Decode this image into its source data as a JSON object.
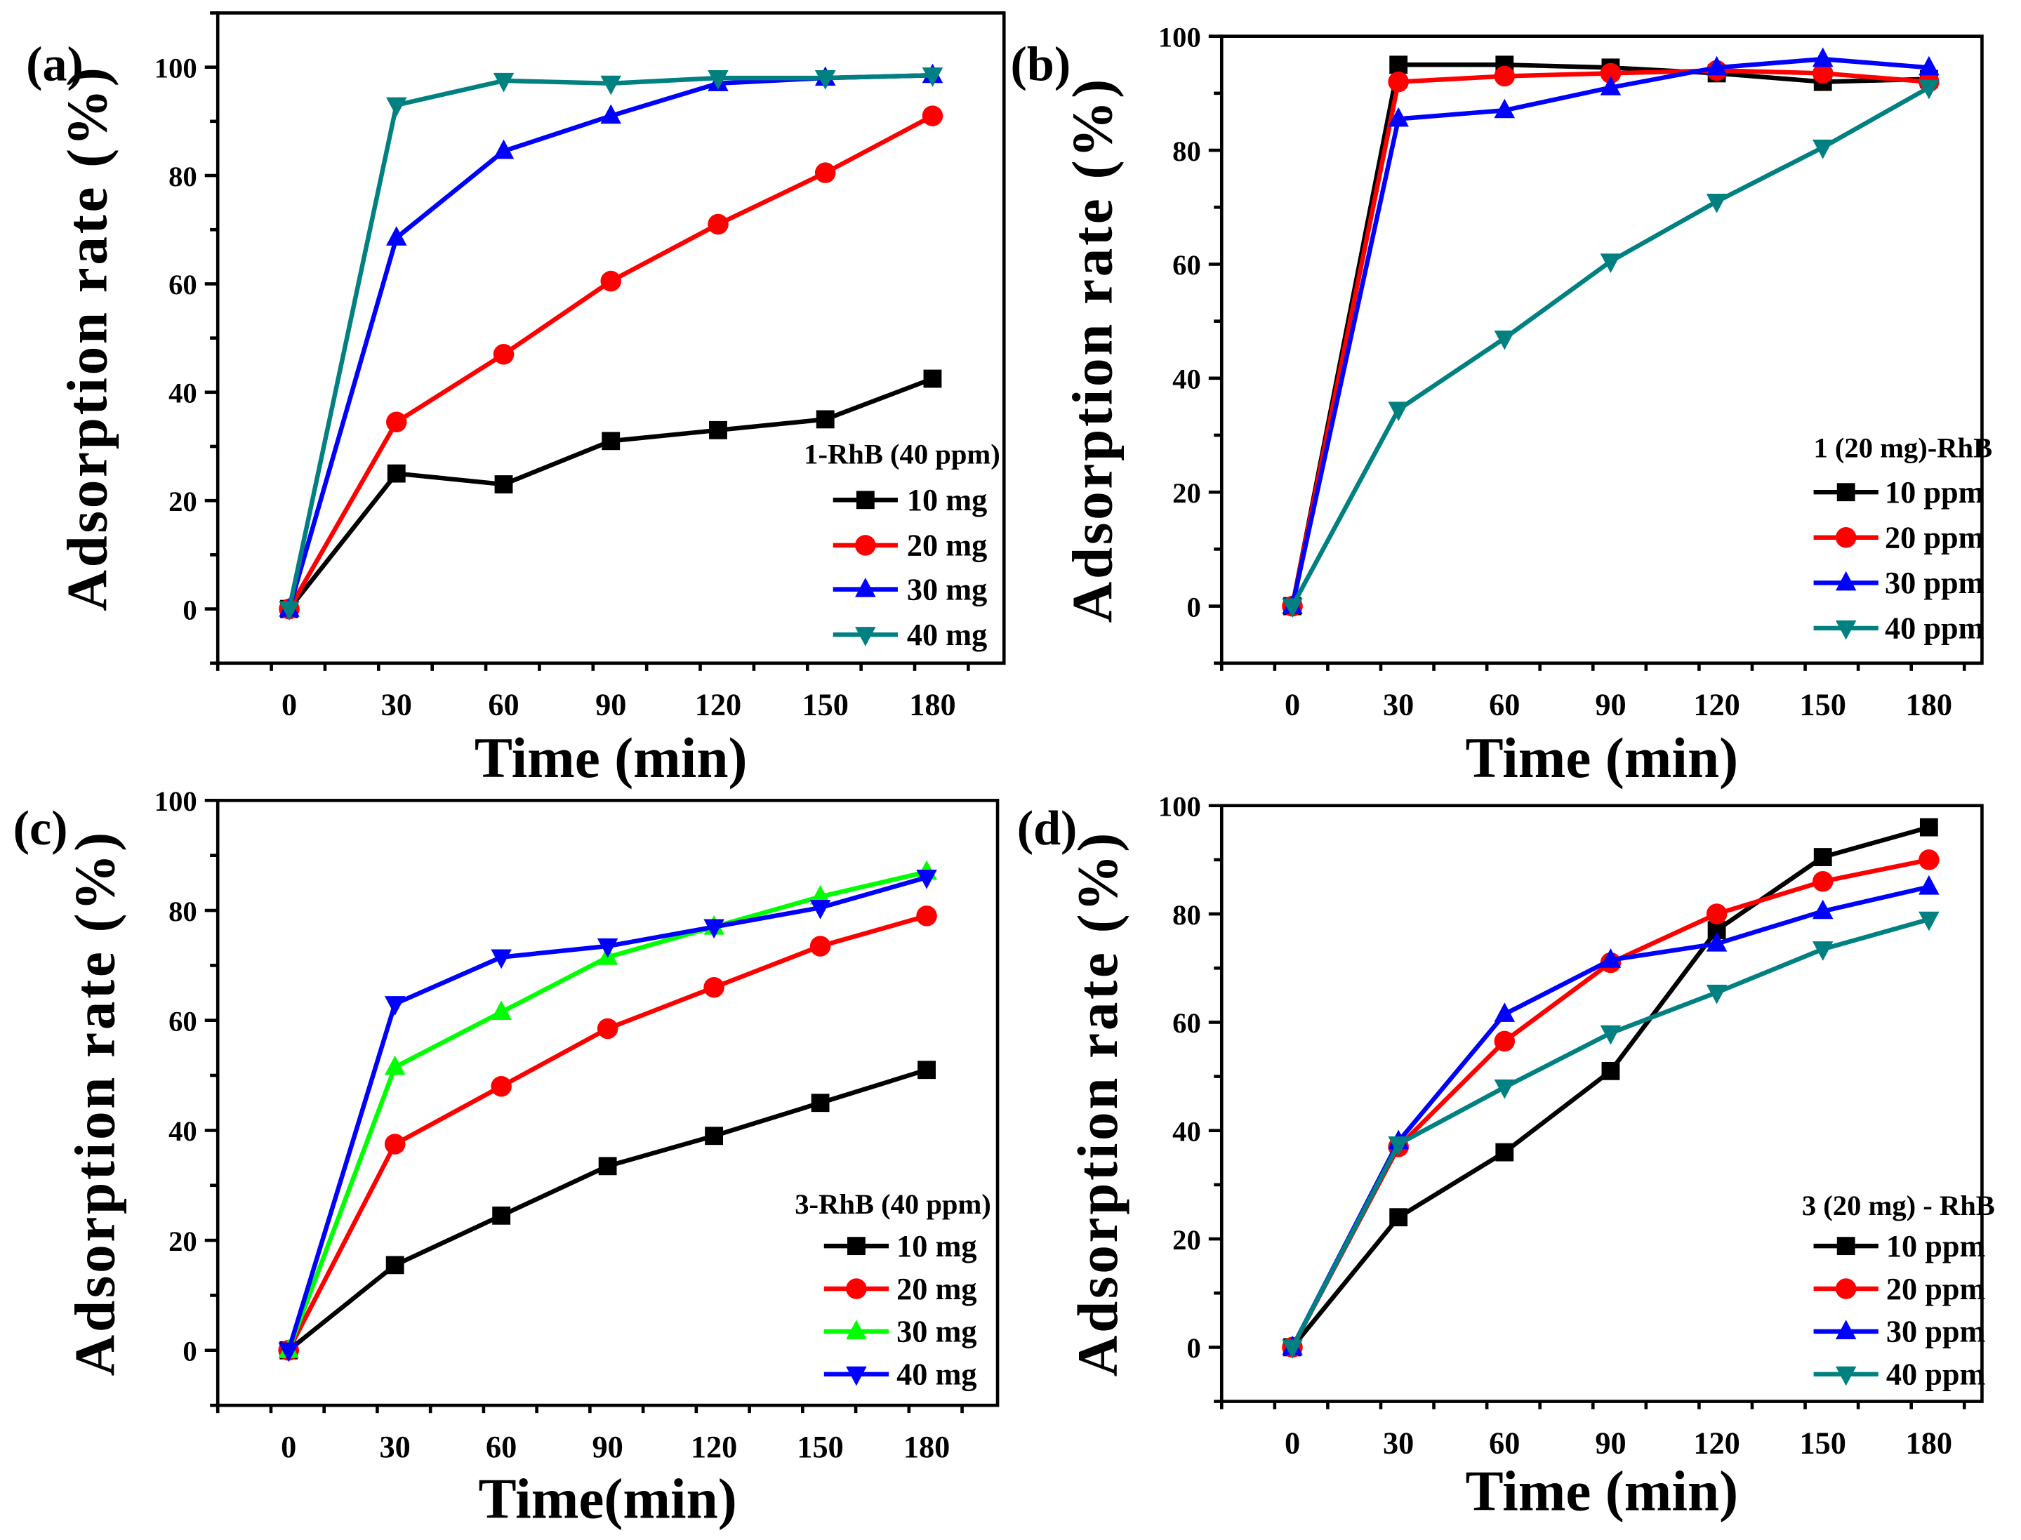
{
  "chart_data": [
    {
      "type": "line",
      "panel_label": "(a)",
      "xlabel": "Time (min)",
      "ylabel": "Adsorption rate (%)",
      "xlim": [
        -20,
        200
      ],
      "ylim": [
        -10,
        110
      ],
      "xticks": [
        0,
        30,
        60,
        90,
        120,
        150,
        180
      ],
      "yticks": [
        0,
        20,
        40,
        60,
        80,
        100
      ],
      "legend_title": "1-RhB (40 ppm)",
      "legend_position": "bottom-right",
      "x": [
        0,
        30,
        60,
        90,
        120,
        150,
        180
      ],
      "series": [
        {
          "name": "10 mg",
          "color": "#000000",
          "marker": "square",
          "values": [
            0,
            25,
            23,
            31,
            33,
            35,
            42.5
          ]
        },
        {
          "name": "20 mg",
          "color": "#ff0000",
          "marker": "circle",
          "values": [
            0,
            34.5,
            47,
            60.5,
            71,
            80.5,
            91
          ]
        },
        {
          "name": "30 mg",
          "color": "#0000ff",
          "marker": "triangle-up",
          "values": [
            0,
            68.5,
            84.5,
            91,
            97,
            98,
            98.5
          ]
        },
        {
          "name": "40 mg",
          "color": "#008080",
          "marker": "triangle-down",
          "values": [
            0,
            93,
            97.5,
            97,
            98,
            98,
            98.5
          ]
        }
      ]
    },
    {
      "type": "line",
      "panel_label": "(b)",
      "xlabel": "Time (min)",
      "ylabel": "Adsorption rate (%)",
      "xlim": [
        -20,
        195
      ],
      "ylim": [
        -10,
        100
      ],
      "xticks": [
        0,
        30,
        60,
        90,
        120,
        150,
        180
      ],
      "yticks": [
        0,
        20,
        40,
        60,
        80,
        100
      ],
      "legend_title": "1 (20 mg)-RhB",
      "legend_position": "bottom-right",
      "x": [
        0,
        30,
        60,
        90,
        120,
        150,
        180
      ],
      "series": [
        {
          "name": "10 ppm",
          "color": "#000000",
          "marker": "square",
          "values": [
            0,
            95,
            95,
            94.5,
            93.5,
            92,
            92.5
          ]
        },
        {
          "name": "20 ppm",
          "color": "#ff0000",
          "marker": "circle",
          "values": [
            0,
            92,
            93,
            93.5,
            94,
            93.5,
            92
          ]
        },
        {
          "name": "30 ppm",
          "color": "#0000ff",
          "marker": "triangle-up",
          "values": [
            0,
            85.5,
            87,
            91,
            94.5,
            96,
            94.5
          ]
        },
        {
          "name": "40 ppm",
          "color": "#008080",
          "marker": "triangle-down",
          "values": [
            0,
            34.5,
            47,
            60.5,
            71,
            80.5,
            91
          ]
        }
      ]
    },
    {
      "type": "line",
      "panel_label": "(c)",
      "xlabel": "Time(min)",
      "ylabel": "Adsorption rate (%)",
      "xlim": [
        -20,
        200
      ],
      "ylim": [
        -10,
        100
      ],
      "xticks": [
        0,
        30,
        60,
        90,
        120,
        150,
        180
      ],
      "yticks": [
        0,
        20,
        40,
        60,
        80,
        100
      ],
      "legend_title": "3-RhB (40 ppm)",
      "legend_position": "bottom-right",
      "x": [
        0,
        30,
        60,
        90,
        120,
        150,
        180
      ],
      "series": [
        {
          "name": "10 mg",
          "color": "#000000",
          "marker": "square",
          "values": [
            0,
            15.5,
            24.5,
            33.5,
            39,
            45,
            51
          ]
        },
        {
          "name": "20 mg",
          "color": "#ff0000",
          "marker": "circle",
          "values": [
            0,
            37.5,
            48,
            58.5,
            66,
            73.5,
            79
          ]
        },
        {
          "name": "30 mg",
          "color": "#00ff00",
          "marker": "triangle-up",
          "values": [
            0,
            51.5,
            61.5,
            71.5,
            77,
            82.5,
            87
          ]
        },
        {
          "name": "40 mg",
          "color": "#0000ff",
          "marker": "triangle-down",
          "values": [
            0,
            63,
            71.5,
            73.5,
            77,
            80.5,
            86
          ]
        }
      ]
    },
    {
      "type": "line",
      "panel_label": "(d)",
      "xlabel": "Time (min)",
      "ylabel": "Adsorption rate (%)",
      "xlim": [
        -20,
        195
      ],
      "ylim": [
        -10,
        100
      ],
      "xticks": [
        0,
        30,
        60,
        90,
        120,
        150,
        180
      ],
      "yticks": [
        0,
        20,
        40,
        60,
        80,
        100
      ],
      "legend_title": "3 (20 mg) - RhB",
      "legend_position": "bottom-right",
      "x": [
        0,
        30,
        60,
        90,
        120,
        150,
        180
      ],
      "series": [
        {
          "name": "10 ppm",
          "color": "#000000",
          "marker": "square",
          "values": [
            0,
            24,
            36,
            51,
            77,
            90.5,
            96
          ]
        },
        {
          "name": "20 ppm",
          "color": "#ff0000",
          "marker": "circle",
          "values": [
            0,
            37,
            56.5,
            71,
            80,
            86,
            90
          ]
        },
        {
          "name": "30 ppm",
          "color": "#0000ff",
          "marker": "triangle-up",
          "values": [
            0,
            38,
            61.5,
            71.5,
            74.5,
            80.5,
            85
          ]
        },
        {
          "name": "40 ppm",
          "color": "#008080",
          "marker": "triangle-down",
          "values": [
            0,
            37.5,
            48,
            58,
            65.5,
            73.5,
            79
          ]
        }
      ]
    }
  ]
}
